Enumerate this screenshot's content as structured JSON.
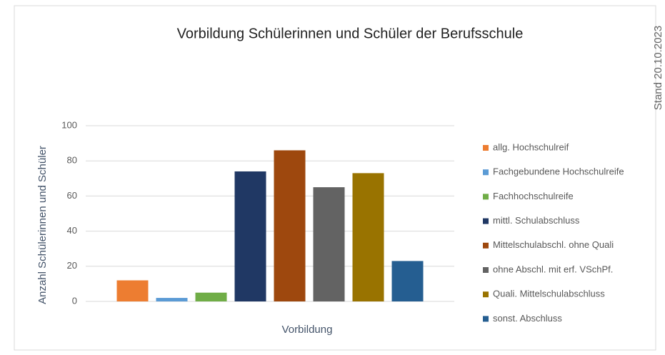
{
  "chart_data": {
    "type": "bar",
    "title": "Vorbildung Schülerinnen und Schüler der Berufsschule",
    "annotation": "Stand 20.10.2023",
    "x_label": "Vorbildung",
    "y_label": "Anzahl Schülerinnen und Schüler",
    "categories": [
      null
    ],
    "series": [
      {
        "name": "allg. Hochschulreif",
        "color": "#ed7d31",
        "values": [
          12
        ]
      },
      {
        "name": "Fachgebundene Hochschulreife",
        "color": "#5b9bd5",
        "values": [
          2
        ]
      },
      {
        "name": "Fachhochschulreife",
        "color": "#70ad47",
        "values": [
          5
        ]
      },
      {
        "name": "mittl. Schulabschluss",
        "color": "#203864",
        "values": [
          74
        ]
      },
      {
        "name": "Mittelschulabschl. ohne Quali",
        "color": "#9e480e",
        "values": [
          86
        ]
      },
      {
        "name": "ohne Abschl. mit erf. VSchPf.",
        "color": "#636363",
        "values": [
          65
        ]
      },
      {
        "name": "Quali. Mittelschulabschluss",
        "color": "#997300",
        "values": [
          73
        ]
      },
      {
        "name": "sonst. Abschluss",
        "color": "#255e91",
        "values": [
          23
        ]
      }
    ],
    "ylim": [
      0,
      100
    ],
    "yticks": [
      0,
      20,
      40,
      60,
      80,
      100
    ],
    "grid": true,
    "legend": "right"
  }
}
